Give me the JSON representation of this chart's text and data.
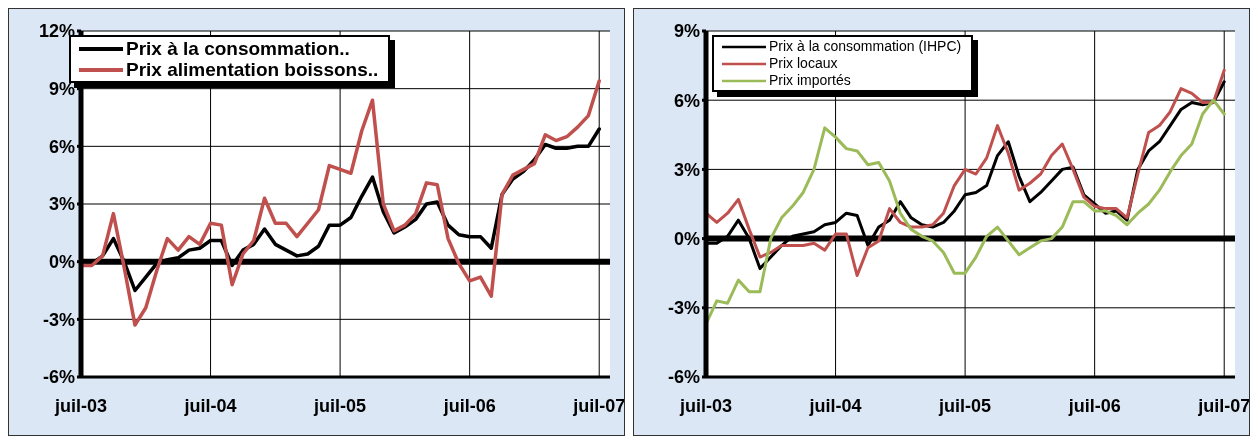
{
  "chart_data": [
    {
      "type": "line",
      "x": [
        "2003-07",
        "2003-08",
        "2003-09",
        "2003-10",
        "2003-11",
        "2003-12",
        "2004-01",
        "2004-02",
        "2004-03",
        "2004-04",
        "2004-05",
        "2004-06",
        "2004-07",
        "2004-08",
        "2004-09",
        "2004-10",
        "2004-11",
        "2004-12",
        "2005-01",
        "2005-02",
        "2005-03",
        "2005-04",
        "2005-05",
        "2005-06",
        "2005-07",
        "2005-08",
        "2005-09",
        "2005-10",
        "2005-11",
        "2005-12",
        "2006-01",
        "2006-02",
        "2006-03",
        "2006-04",
        "2006-05",
        "2006-06",
        "2006-07",
        "2006-08",
        "2006-09",
        "2006-10",
        "2006-11",
        "2006-12",
        "2007-01",
        "2007-02",
        "2007-03",
        "2007-04",
        "2007-05",
        "2007-06",
        "2007-07"
      ],
      "series": [
        {
          "name": "Prix à la consommation..",
          "color": "#000000",
          "values": [
            -0.2,
            -0.1,
            0.3,
            1.2,
            0.0,
            -1.5,
            -0.8,
            -0.1,
            0.1,
            0.2,
            0.6,
            0.7,
            1.1,
            1.1,
            -0.2,
            0.6,
            0.9,
            1.7,
            0.9,
            0.6,
            0.3,
            0.4,
            0.8,
            1.9,
            1.9,
            2.3,
            3.4,
            4.4,
            2.6,
            1.5,
            1.8,
            2.2,
            3.0,
            3.1,
            1.9,
            1.4,
            1.3,
            1.3,
            0.7,
            3.5,
            4.3,
            4.7,
            5.3,
            6.1,
            5.9,
            5.9,
            6.0,
            6.0,
            6.9
          ]
        },
        {
          "name": "Prix alimentation boissons..",
          "color": "#c0504d",
          "values": [
            -0.2,
            -0.2,
            0.3,
            2.5,
            -0.3,
            -3.3,
            -2.4,
            -0.5,
            1.2,
            0.6,
            1.3,
            0.9,
            2.0,
            1.9,
            -1.2,
            0.4,
            1.1,
            3.3,
            2.0,
            2.0,
            1.3,
            2.0,
            2.7,
            5.0,
            4.8,
            4.6,
            6.8,
            8.4,
            3.0,
            1.6,
            1.9,
            2.5,
            4.1,
            4.0,
            1.2,
            -0.1,
            -1.0,
            -0.8,
            -1.8,
            3.5,
            4.5,
            4.8,
            5.1,
            6.6,
            6.3,
            6.5,
            7.0,
            7.6,
            9.4
          ]
        }
      ],
      "xlim": [
        "2003-07",
        "2007-08"
      ],
      "xticks": [
        {
          "value": "2003-07",
          "label": "juil-03"
        },
        {
          "value": "2004-07",
          "label": "juil-04"
        },
        {
          "value": "2005-07",
          "label": "juil-05"
        },
        {
          "value": "2006-07",
          "label": "juil-06"
        },
        {
          "value": "2007-07",
          "label": "juil-07"
        }
      ],
      "ylim": [
        -6,
        12
      ],
      "yticks": [
        {
          "value": -6,
          "label": "-6%"
        },
        {
          "value": -3,
          "label": "-3%"
        },
        {
          "value": 0,
          "label": "0%"
        },
        {
          "value": 3,
          "label": "3%"
        },
        {
          "value": 6,
          "label": "6%"
        },
        {
          "value": 9,
          "label": "9%"
        },
        {
          "value": 12,
          "label": "12%"
        }
      ],
      "ref_lines": [
        {
          "axis": "y",
          "value": 0,
          "color": "#000000"
        }
      ],
      "grid": true,
      "legend": "top left",
      "marker": "none",
      "line_style": "solid"
    },
    {
      "type": "line",
      "x": [
        "2003-07",
        "2003-08",
        "2003-09",
        "2003-10",
        "2003-11",
        "2003-12",
        "2004-01",
        "2004-02",
        "2004-03",
        "2004-04",
        "2004-05",
        "2004-06",
        "2004-07",
        "2004-08",
        "2004-09",
        "2004-10",
        "2004-11",
        "2004-12",
        "2005-01",
        "2005-02",
        "2005-03",
        "2005-04",
        "2005-05",
        "2005-06",
        "2005-07",
        "2005-08",
        "2005-09",
        "2005-10",
        "2005-11",
        "2005-12",
        "2006-01",
        "2006-02",
        "2006-03",
        "2006-04",
        "2006-05",
        "2006-06",
        "2006-07",
        "2006-08",
        "2006-09",
        "2006-10",
        "2006-11",
        "2006-12",
        "2007-01",
        "2007-02",
        "2007-03",
        "2007-04",
        "2007-05",
        "2007-06",
        "2007-07"
      ],
      "series": [
        {
          "name": "Prix à la consommation (IHPC)",
          "color": "#000000",
          "values": [
            -0.2,
            -0.2,
            0.1,
            0.8,
            0.0,
            -1.3,
            -0.8,
            -0.3,
            0.1,
            0.2,
            0.3,
            0.6,
            0.7,
            1.1,
            1.0,
            -0.3,
            0.5,
            0.8,
            1.6,
            0.9,
            0.6,
            0.5,
            0.7,
            1.2,
            1.9,
            2.0,
            2.3,
            3.6,
            4.2,
            2.7,
            1.6,
            2.0,
            2.5,
            3.0,
            3.1,
            1.9,
            1.5,
            1.1,
            1.2,
            0.8,
            3.0,
            3.8,
            4.2,
            4.9,
            5.6,
            5.9,
            5.8,
            5.9,
            6.8
          ]
        },
        {
          "name": "Prix locaux",
          "color": "#c0504d",
          "values": [
            1.1,
            0.7,
            1.1,
            1.7,
            0.4,
            -0.8,
            -0.6,
            -0.3,
            -0.3,
            -0.3,
            -0.2,
            -0.5,
            0.2,
            0.2,
            -1.6,
            -0.4,
            -0.1,
            1.3,
            0.7,
            0.5,
            0.5,
            0.6,
            1.1,
            2.3,
            3.0,
            2.8,
            3.5,
            4.9,
            3.7,
            2.1,
            2.4,
            2.8,
            3.6,
            4.1,
            3.0,
            1.8,
            1.4,
            1.3,
            1.3,
            0.9,
            2.8,
            4.6,
            4.9,
            5.5,
            6.5,
            6.3,
            5.9,
            5.9,
            7.3
          ]
        },
        {
          "name": "Prix importés",
          "color": "#9bbb59",
          "values": [
            -3.7,
            -2.7,
            -2.8,
            -1.8,
            -2.3,
            -2.3,
            0.0,
            0.9,
            1.4,
            2.0,
            3.0,
            4.8,
            4.4,
            3.9,
            3.8,
            3.2,
            3.3,
            2.5,
            1.1,
            0.4,
            0.1,
            -0.1,
            -0.6,
            -1.5,
            -1.5,
            -0.8,
            0.1,
            0.5,
            -0.1,
            -0.7,
            -0.4,
            -0.1,
            0.0,
            0.5,
            1.6,
            1.6,
            1.2,
            1.2,
            1.0,
            0.6,
            1.1,
            1.5,
            2.1,
            2.9,
            3.6,
            4.1,
            5.4,
            6.0,
            5.4
          ]
        }
      ],
      "xlim": [
        "2003-07",
        "2007-08"
      ],
      "xticks": [
        {
          "value": "2003-07",
          "label": "juil-03"
        },
        {
          "value": "2004-07",
          "label": "juil-04"
        },
        {
          "value": "2005-07",
          "label": "juil-05"
        },
        {
          "value": "2006-07",
          "label": "juil-06"
        },
        {
          "value": "2007-07",
          "label": "juil-07"
        }
      ],
      "ylim": [
        -6,
        9
      ],
      "yticks": [
        {
          "value": -6,
          "label": "-6%"
        },
        {
          "value": -3,
          "label": "-3%"
        },
        {
          "value": 0,
          "label": "0%"
        },
        {
          "value": 3,
          "label": "3%"
        },
        {
          "value": 6,
          "label": "6%"
        },
        {
          "value": 9,
          "label": "9%"
        }
      ],
      "ref_lines": [
        {
          "axis": "y",
          "value": 0,
          "color": "#000000"
        }
      ],
      "grid": true,
      "legend": "top left",
      "marker": "none",
      "line_style": "solid"
    }
  ]
}
